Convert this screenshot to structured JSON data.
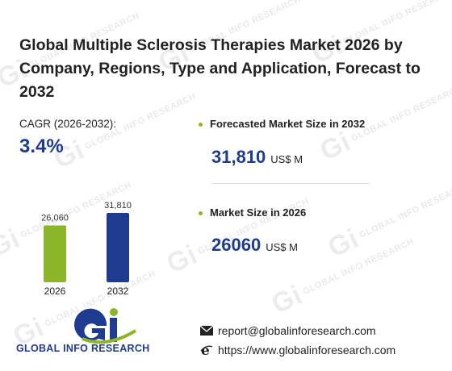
{
  "title": "Global Multiple Sclerosis Therapies Market 2026 by Company, Regions, Type and Application, Forecast to 2032",
  "cagr": {
    "label": "CAGR (2026-2032):",
    "value": "3.4%"
  },
  "forecast": {
    "label": "Forecasted Market Size in 2032",
    "value": "31,810",
    "unit": "US$ M"
  },
  "market": {
    "label": "Market Size in 2026",
    "value": "26060",
    "unit": "US$ M"
  },
  "chart_data": {
    "type": "bar",
    "categories": [
      "2026",
      "2032"
    ],
    "values": [
      26060,
      31810
    ],
    "value_labels": [
      "26,060",
      "31,810"
    ],
    "colors": [
      "#8cb52a",
      "#1f3b8f"
    ],
    "ylim": [
      0,
      31810
    ],
    "title": "",
    "xlabel": "",
    "ylabel": "",
    "grid": false
  },
  "logo": {
    "text": "GLOBAL INFO RESEARCH"
  },
  "watermark": {
    "text": "GLOBAL INFO RESEARCH",
    "glyph": "Gi"
  },
  "contact": {
    "email": "report@globalinforesearch.com",
    "website": "https://www.globalinforesearch.com",
    "email_icon": "envelope-icon",
    "web_icon": "internet-explorer-icon"
  }
}
